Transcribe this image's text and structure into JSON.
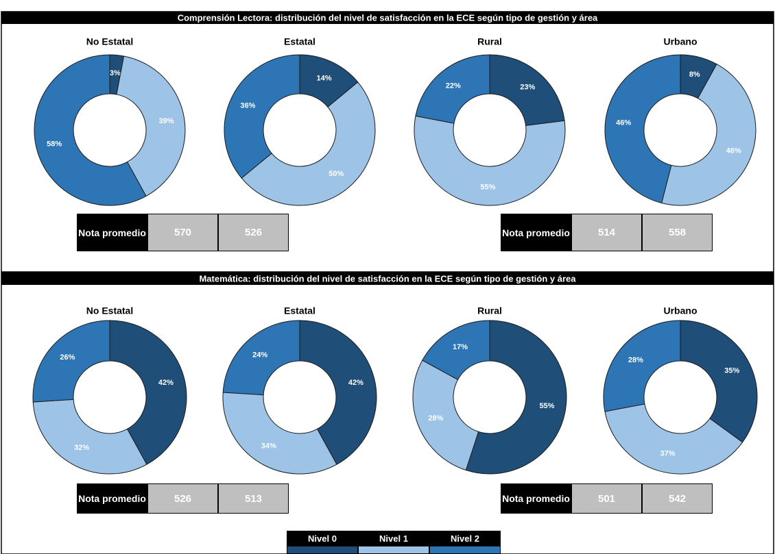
{
  "panels": [
    {
      "title": "Comprensión Lectora: distribución del nivel de satisfacción en la ECE según tipo de gestión y área",
      "tables": [
        {
          "label": "Nota promedio",
          "values": [
            570,
            526
          ]
        },
        {
          "label": "Nota promedio",
          "values": [
            514,
            558
          ]
        }
      ]
    },
    {
      "title": "Matemática: distribución del nivel de satisfacción en la ECE según tipo de gestión y área",
      "tables": [
        {
          "label": "Nota promedio",
          "values": [
            526,
            513
          ]
        },
        {
          "label": "Nota promedio",
          "values": [
            501,
            542
          ]
        }
      ]
    }
  ],
  "legend": {
    "labels": [
      "Nivel 0",
      "Nivel 1",
      "Nivel 2"
    ],
    "colors": [
      "#1f4e79",
      "#9dc3e6",
      "#2e75b6"
    ]
  },
  "chart_data": [
    {
      "type": "donut",
      "title": "No Estatal",
      "values": [
        3,
        39,
        58
      ],
      "value_labels": [
        "3%",
        "39%",
        "58%"
      ]
    },
    {
      "type": "donut",
      "title": "Estatal",
      "values": [
        14,
        50,
        36
      ],
      "value_labels": [
        "14%",
        "50%",
        "36%"
      ]
    },
    {
      "type": "donut",
      "title": "Rural",
      "values": [
        23,
        55,
        22
      ],
      "value_labels": [
        "23%",
        "55%",
        "22%"
      ]
    },
    {
      "type": "donut",
      "title": "Urbano",
      "values": [
        8,
        46,
        46
      ],
      "value_labels": [
        "8%",
        "46%",
        "46%"
      ]
    },
    {
      "type": "donut",
      "title": "No Estatal",
      "values": [
        42,
        32,
        26
      ],
      "value_labels": [
        "42%",
        "32%",
        "26%"
      ]
    },
    {
      "type": "donut",
      "title": "Estatal",
      "values": [
        42,
        34,
        24
      ],
      "value_labels": [
        "42%",
        "34%",
        "24%"
      ]
    },
    {
      "type": "donut",
      "title": "Rural",
      "values": [
        55,
        28,
        17
      ],
      "value_labels": [
        "55%",
        "28%",
        "17%"
      ]
    },
    {
      "type": "donut",
      "title": "Urbano",
      "values": [
        35,
        37,
        28
      ],
      "value_labels": [
        "35%",
        "37%",
        "28%"
      ]
    }
  ]
}
